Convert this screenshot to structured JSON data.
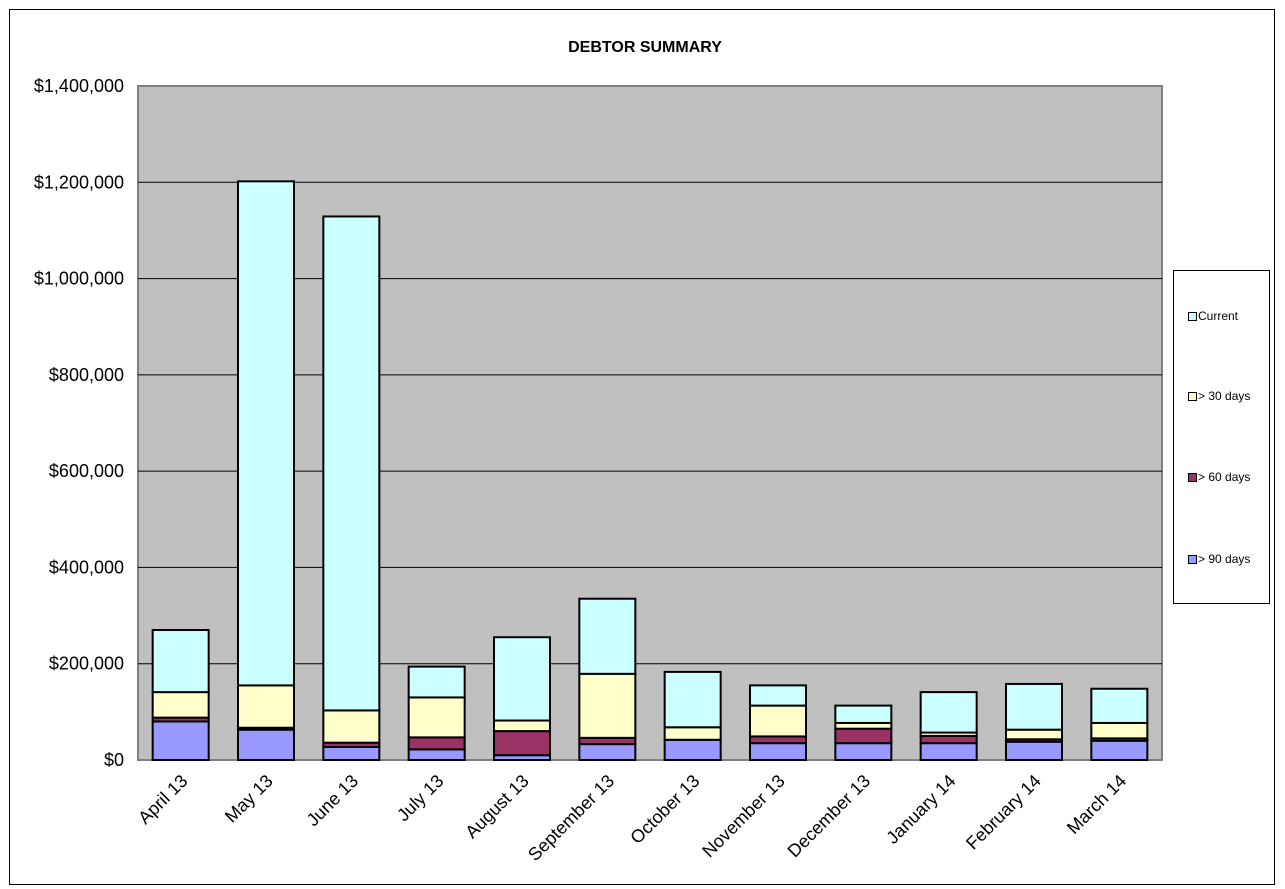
{
  "chart_data": {
    "type": "bar",
    "stacked": true,
    "title": "DEBTOR SUMMARY",
    "xlabel": "",
    "ylabel": "",
    "ylim": [
      0,
      1400000
    ],
    "yticks": [
      "$0",
      "$200,000",
      "$400,000",
      "$600,000",
      "$800,000",
      "$1,000,000",
      "$1,200,000",
      "$1,400,000"
    ],
    "grid": true,
    "legend_position": "right",
    "categories": [
      "April 13",
      "May 13",
      "June 13",
      "July 13",
      "August 13",
      "September 13",
      "October 13",
      "November 13",
      "December 13",
      "January 14",
      "February 14",
      "March 14"
    ],
    "series": [
      {
        "name": "> 90 days",
        "color": "#9999ff",
        "values": [
          80000,
          63000,
          27000,
          22000,
          10000,
          33000,
          42000,
          35000,
          35000,
          35000,
          38000,
          40000
        ]
      },
      {
        "name": "> 60 days",
        "color": "#993366",
        "values": [
          8000,
          4000,
          9000,
          25000,
          50000,
          13000,
          0,
          14000,
          30000,
          15000,
          5000,
          5000
        ]
      },
      {
        "name": "> 30 days",
        "color": "#ffffcc",
        "values": [
          53000,
          88000,
          67000,
          83000,
          22000,
          133000,
          26000,
          64000,
          12000,
          7000,
          20000,
          32000
        ]
      },
      {
        "name": "Current",
        "color": "#ccffff",
        "values": [
          129000,
          1047000,
          1026000,
          64000,
          173000,
          156000,
          115000,
          42000,
          36000,
          84000,
          95000,
          71000
        ]
      }
    ],
    "legend_order": [
      "Current",
      "> 30 days",
      "> 60 days",
      "> 90 days"
    ],
    "colors": {
      "plot_bg": "#c0c0c0",
      "grid": "#000000",
      "axis": "#808080"
    }
  }
}
